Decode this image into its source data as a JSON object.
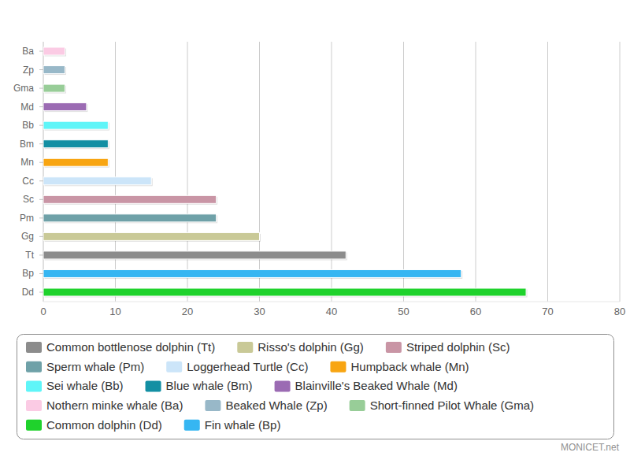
{
  "chart_data": {
    "type": "bar",
    "orientation": "horizontal",
    "grid": true,
    "legend": "bottom",
    "source": "MONICET.net",
    "categories": [
      "Ba",
      "Zp",
      "Gma",
      "Md",
      "Bb",
      "Bm",
      "Mn",
      "Cc",
      "Sc",
      "Pm",
      "Gg",
      "Tt",
      "Bp",
      "Dd"
    ],
    "xlim": [
      0,
      80
    ],
    "xticks": [
      0,
      10,
      20,
      30,
      40,
      50,
      60,
      70,
      80
    ],
    "series": [
      {
        "name": "Common bottlenose dolphin (Tt)",
        "color": "#8c8c8c",
        "values": [
          null,
          null,
          null,
          null,
          null,
          null,
          null,
          null,
          null,
          null,
          null,
          42,
          null,
          null
        ]
      },
      {
        "name": "Risso's dolphin (Gg)",
        "color": "#c9c997",
        "values": [
          null,
          null,
          null,
          null,
          null,
          null,
          null,
          null,
          null,
          null,
          30,
          null,
          null,
          null
        ]
      },
      {
        "name": "Striped dolphin (Sc)",
        "color": "#c995a5",
        "values": [
          null,
          null,
          null,
          null,
          null,
          null,
          null,
          null,
          24,
          null,
          null,
          null,
          null,
          null
        ]
      },
      {
        "name": "Sperm whale (Pm)",
        "color": "#6fa1a8",
        "values": [
          null,
          null,
          null,
          null,
          null,
          null,
          null,
          null,
          null,
          24,
          null,
          null,
          null,
          null
        ]
      },
      {
        "name": "Loggerhead Turtle (Cc)",
        "color": "#cce5f9",
        "values": [
          null,
          null,
          null,
          null,
          null,
          null,
          null,
          15,
          null,
          null,
          null,
          null,
          null,
          null
        ]
      },
      {
        "name": "Humpback whale (Mn)",
        "color": "#f8a512",
        "values": [
          null,
          null,
          null,
          null,
          null,
          null,
          9,
          null,
          null,
          null,
          null,
          null,
          null,
          null
        ]
      },
      {
        "name": "Sei whale (Bb)",
        "color": "#5ff5f8",
        "values": [
          null,
          null,
          null,
          null,
          9,
          null,
          null,
          null,
          null,
          null,
          null,
          null,
          null,
          null
        ]
      },
      {
        "name": "Blue whale (Bm)",
        "color": "#138fa3",
        "values": [
          null,
          null,
          null,
          null,
          null,
          9,
          null,
          null,
          null,
          null,
          null,
          null,
          null,
          null
        ]
      },
      {
        "name": "Blainville's Beaked Whale (Md)",
        "color": "#9b6bb3",
        "values": [
          null,
          null,
          null,
          6,
          null,
          null,
          null,
          null,
          null,
          null,
          null,
          null,
          null,
          null
        ]
      },
      {
        "name": "Nothern minke whale (Ba)",
        "color": "#fbcbe4",
        "values": [
          3,
          null,
          null,
          null,
          null,
          null,
          null,
          null,
          null,
          null,
          null,
          null,
          null,
          null
        ]
      },
      {
        "name": "Beaked Whale (Zp)",
        "color": "#98b8c8",
        "values": [
          null,
          3,
          null,
          null,
          null,
          null,
          null,
          null,
          null,
          null,
          null,
          null,
          null,
          null
        ]
      },
      {
        "name": "Short-finned Pilot Whale (Gma)",
        "color": "#98cd98",
        "values": [
          null,
          null,
          3,
          null,
          null,
          null,
          null,
          null,
          null,
          null,
          null,
          null,
          null,
          null
        ]
      },
      {
        "name": "Common dolphin (Dd)",
        "color": "#1fd22c",
        "values": [
          null,
          null,
          null,
          null,
          null,
          null,
          null,
          null,
          null,
          null,
          null,
          null,
          null,
          67
        ]
      },
      {
        "name": "Fin whale (Bp)",
        "color": "#36b6f2",
        "values": [
          null,
          null,
          null,
          null,
          null,
          null,
          null,
          null,
          null,
          null,
          null,
          null,
          58,
          null
        ]
      }
    ]
  }
}
